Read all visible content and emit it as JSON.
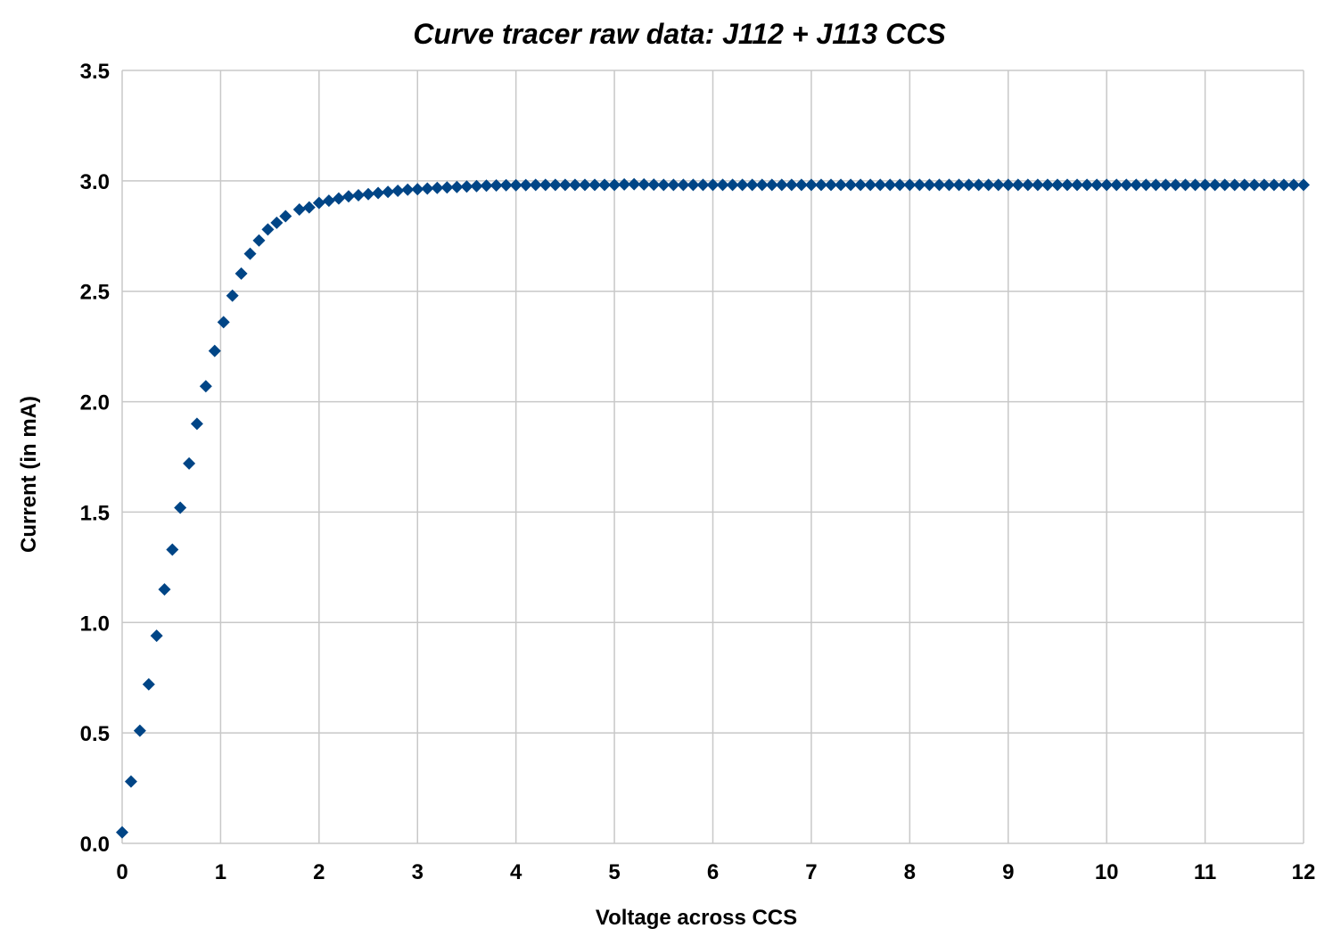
{
  "chart_data": {
    "type": "scatter",
    "title": "Curve tracer raw data: J112 + J113 CCS",
    "xlabel": "Voltage across CCS",
    "ylabel": "Current (in mA)",
    "xlim": [
      0,
      12
    ],
    "ylim": [
      0,
      3.5
    ],
    "x_ticks": [
      "0",
      "1",
      "2",
      "3",
      "4",
      "5",
      "6",
      "7",
      "8",
      "9",
      "10",
      "11",
      "12"
    ],
    "y_ticks": [
      "0.0",
      "0.5",
      "1.0",
      "1.5",
      "2.0",
      "2.5",
      "3.0",
      "3.5"
    ],
    "grid": true,
    "legend": "none",
    "marker": "diamond",
    "color": "#004586",
    "series": [
      {
        "x": [
          0.0,
          0.09,
          0.18,
          0.27,
          0.35,
          0.43,
          0.51,
          0.59,
          0.68,
          0.76,
          0.85,
          0.94,
          1.03,
          1.12,
          1.21,
          1.3,
          1.39,
          1.48,
          1.57,
          1.66,
          1.8,
          1.9,
          2.0,
          2.1,
          2.2,
          2.3,
          2.4,
          2.5,
          2.6,
          2.7,
          2.8,
          2.9,
          3.0,
          3.1,
          3.2,
          3.3,
          3.4,
          3.5,
          3.6,
          3.7,
          3.8,
          3.9,
          4.0,
          4.1,
          4.2,
          4.3,
          4.4,
          4.5,
          4.6,
          4.7,
          4.8,
          4.9,
          5.0,
          5.1,
          5.2,
          5.3,
          5.4,
          5.5,
          5.6,
          5.7,
          5.8,
          5.9,
          6.0,
          6.1,
          6.2,
          6.3,
          6.4,
          6.5,
          6.6,
          6.7,
          6.8,
          6.9,
          7.0,
          7.1,
          7.2,
          7.3,
          7.4,
          7.5,
          7.6,
          7.7,
          7.8,
          7.9,
          8.0,
          8.1,
          8.2,
          8.3,
          8.4,
          8.5,
          8.6,
          8.7,
          8.8,
          8.9,
          9.0,
          9.1,
          9.2,
          9.3,
          9.4,
          9.5,
          9.6,
          9.7,
          9.8,
          9.9,
          10.0,
          10.1,
          10.2,
          10.3,
          10.4,
          10.5,
          10.6,
          10.7,
          10.8,
          10.9,
          11.0,
          11.1,
          11.2,
          11.3,
          11.4,
          11.5,
          11.6,
          11.7,
          11.8,
          11.9,
          12.0
        ],
        "y": [
          0.05,
          0.28,
          0.51,
          0.72,
          0.94,
          1.15,
          1.33,
          1.52,
          1.72,
          1.9,
          2.07,
          2.23,
          2.36,
          2.48,
          2.58,
          2.67,
          2.73,
          2.78,
          2.81,
          2.84,
          2.87,
          2.88,
          2.9,
          2.91,
          2.92,
          2.93,
          2.935,
          2.94,
          2.945,
          2.95,
          2.955,
          2.96,
          2.962,
          2.965,
          2.968,
          2.97,
          2.972,
          2.974,
          2.976,
          2.978,
          2.979,
          2.98,
          2.98,
          2.981,
          2.982,
          2.982,
          2.982,
          2.982,
          2.982,
          2.982,
          2.982,
          2.982,
          2.982,
          2.984,
          2.985,
          2.984,
          2.983,
          2.982,
          2.982,
          2.982,
          2.982,
          2.982,
          2.982,
          2.982,
          2.982,
          2.982,
          2.982,
          2.982,
          2.982,
          2.982,
          2.982,
          2.982,
          2.982,
          2.982,
          2.982,
          2.982,
          2.982,
          2.982,
          2.982,
          2.982,
          2.982,
          2.982,
          2.982,
          2.982,
          2.982,
          2.982,
          2.982,
          2.982,
          2.982,
          2.982,
          2.982,
          2.982,
          2.982,
          2.982,
          2.982,
          2.982,
          2.982,
          2.982,
          2.982,
          2.982,
          2.982,
          2.982,
          2.982,
          2.982,
          2.982,
          2.982,
          2.982,
          2.982,
          2.982,
          2.982,
          2.982,
          2.982,
          2.982,
          2.982,
          2.982,
          2.982,
          2.982,
          2.982,
          2.982,
          2.982,
          2.982,
          2.982,
          2.982
        ]
      }
    ]
  }
}
